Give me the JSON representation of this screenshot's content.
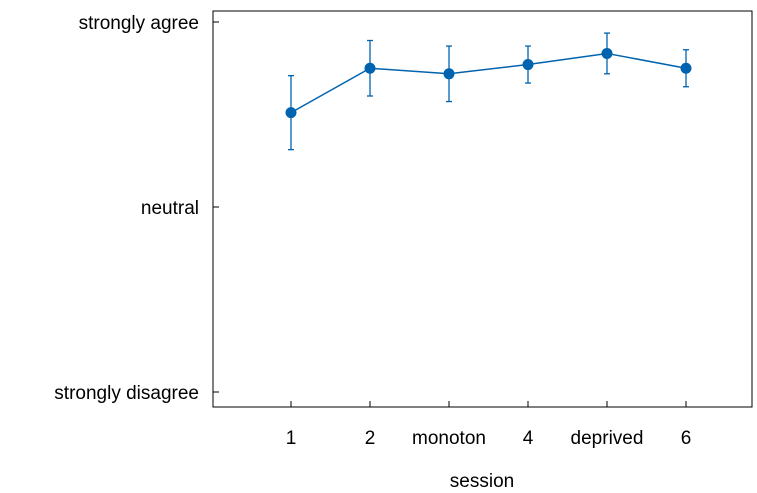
{
  "colors": {
    "series": "#0063b0",
    "axis": "#000000",
    "background": "#ffffff"
  },
  "chart_data": {
    "type": "line",
    "title": "",
    "xlabel": "session",
    "ylabel": "",
    "categories": [
      "1",
      "2",
      "monoton",
      "4",
      "deprived",
      "6"
    ],
    "y_tick_labels": [
      "strongly disagree",
      "neutral",
      "strongly agree"
    ],
    "ylim": [
      -1,
      1
    ],
    "grid": false,
    "legend": "none",
    "series": [
      {
        "values": [
          0.51,
          0.75,
          0.72,
          0.77,
          0.83,
          0.75
        ],
        "error_low": [
          0.31,
          0.6,
          0.57,
          0.67,
          0.72,
          0.65
        ],
        "error_high": [
          0.71,
          0.9,
          0.87,
          0.87,
          0.94,
          0.85
        ]
      }
    ]
  }
}
